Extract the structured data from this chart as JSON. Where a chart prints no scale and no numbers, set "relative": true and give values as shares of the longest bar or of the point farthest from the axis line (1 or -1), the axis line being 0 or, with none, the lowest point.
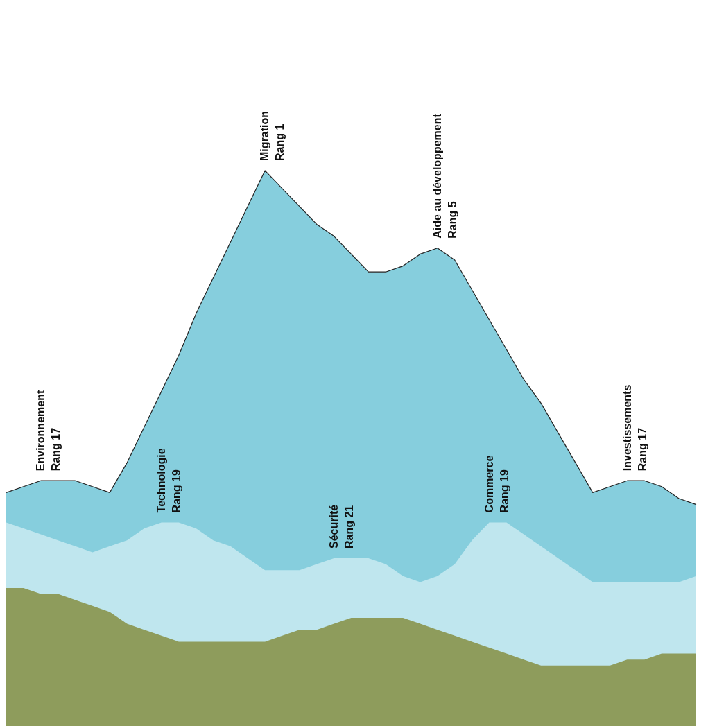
{
  "chart_data": {
    "type": "area",
    "relative": true,
    "categories": [
      null,
      null,
      null,
      null,
      null,
      null,
      null,
      null,
      null,
      null,
      null,
      null,
      null,
      null,
      null,
      null,
      null,
      null,
      null,
      null,
      null,
      null,
      null,
      null,
      null,
      null,
      null,
      null,
      null,
      null,
      null,
      null,
      null,
      null,
      null,
      null,
      null,
      null,
      null,
      null,
      null
    ],
    "series": [
      {
        "color": "#86cedd",
        "values": [
          0.46,
          0.47,
          0.48,
          0.48,
          0.48,
          0.47,
          0.46,
          0.51,
          0.57,
          0.63,
          0.69,
          0.76,
          0.82,
          0.88,
          0.94,
          1.0,
          0.97,
          0.94,
          0.91,
          0.89,
          0.86,
          0.83,
          0.83,
          0.84,
          0.86,
          0.87,
          0.85,
          0.8,
          0.75,
          0.7,
          0.65,
          0.61,
          0.56,
          0.51,
          0.46,
          0.47,
          0.48,
          0.48,
          0.47,
          0.45,
          0.44
        ]
      },
      {
        "color": "#bfe6ee",
        "values": [
          0.41,
          0.4,
          0.39,
          0.38,
          0.37,
          0.36,
          0.37,
          0.38,
          0.4,
          0.41,
          0.41,
          0.4,
          0.38,
          0.37,
          0.35,
          0.33,
          0.33,
          0.33,
          0.34,
          0.35,
          0.35,
          0.35,
          0.34,
          0.32,
          0.31,
          0.32,
          0.34,
          0.38,
          0.41,
          0.41,
          0.39,
          0.37,
          0.35,
          0.33,
          0.31,
          0.31,
          0.31,
          0.31,
          0.31,
          0.31,
          0.32
        ]
      },
      {
        "color": "#8e9c5c",
        "values": [
          0.3,
          0.3,
          0.29,
          0.29,
          0.28,
          0.27,
          0.26,
          0.24,
          0.23,
          0.22,
          0.21,
          0.21,
          0.21,
          0.21,
          0.21,
          0.21,
          0.22,
          0.23,
          0.23,
          0.24,
          0.25,
          0.25,
          0.25,
          0.25,
          0.24,
          0.23,
          0.22,
          0.21,
          0.2,
          0.19,
          0.18,
          0.17,
          0.17,
          0.17,
          0.17,
          0.17,
          0.18,
          0.18,
          0.19,
          0.19,
          0.19
        ]
      }
    ],
    "annotations": [
      "Environnement\nRang 17",
      "Migration\nRang 1",
      "Aide au développement\nRang 5",
      "Investissements\nRang 17",
      "Technologie\nRang 19",
      "Sécurité\nRang 21",
      "Commerce\nRang 19"
    ]
  }
}
